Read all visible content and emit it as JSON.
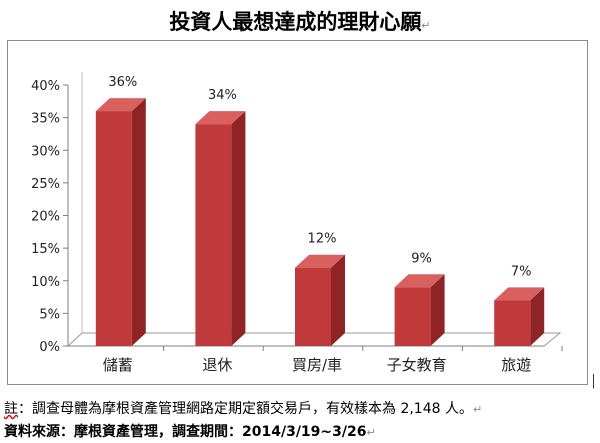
{
  "title": "投資人最想達成的理財心願",
  "note": {
    "prefix": "註",
    "text": "：調查母體為摩根資產管理網路定期定額交易戶，有效樣本為 2,148 人。"
  },
  "source": "資料來源：摩根資產管理，調查期間：2014/3/19~3/26",
  "chart_data": {
    "type": "bar",
    "categories": [
      "儲蓄",
      "退休",
      "買房/車",
      "子女教育",
      "旅遊"
    ],
    "values": [
      36,
      34,
      12,
      9,
      7
    ],
    "data_labels": [
      "36%",
      "34%",
      "12%",
      "9%",
      "7%"
    ],
    "y_ticks": [
      "0%",
      "5%",
      "10%",
      "15%",
      "20%",
      "25%",
      "30%",
      "35%",
      "40%"
    ],
    "ylim": [
      0,
      40
    ],
    "title": "投資人最想達成的理財心願",
    "xlabel": "",
    "ylabel": "",
    "grid": false,
    "legend": "none",
    "bar_color": "#c0393b",
    "bar_side_color": "#8f2426",
    "bar_top_color": "#d9605f",
    "floor_color": "#ffffff"
  }
}
